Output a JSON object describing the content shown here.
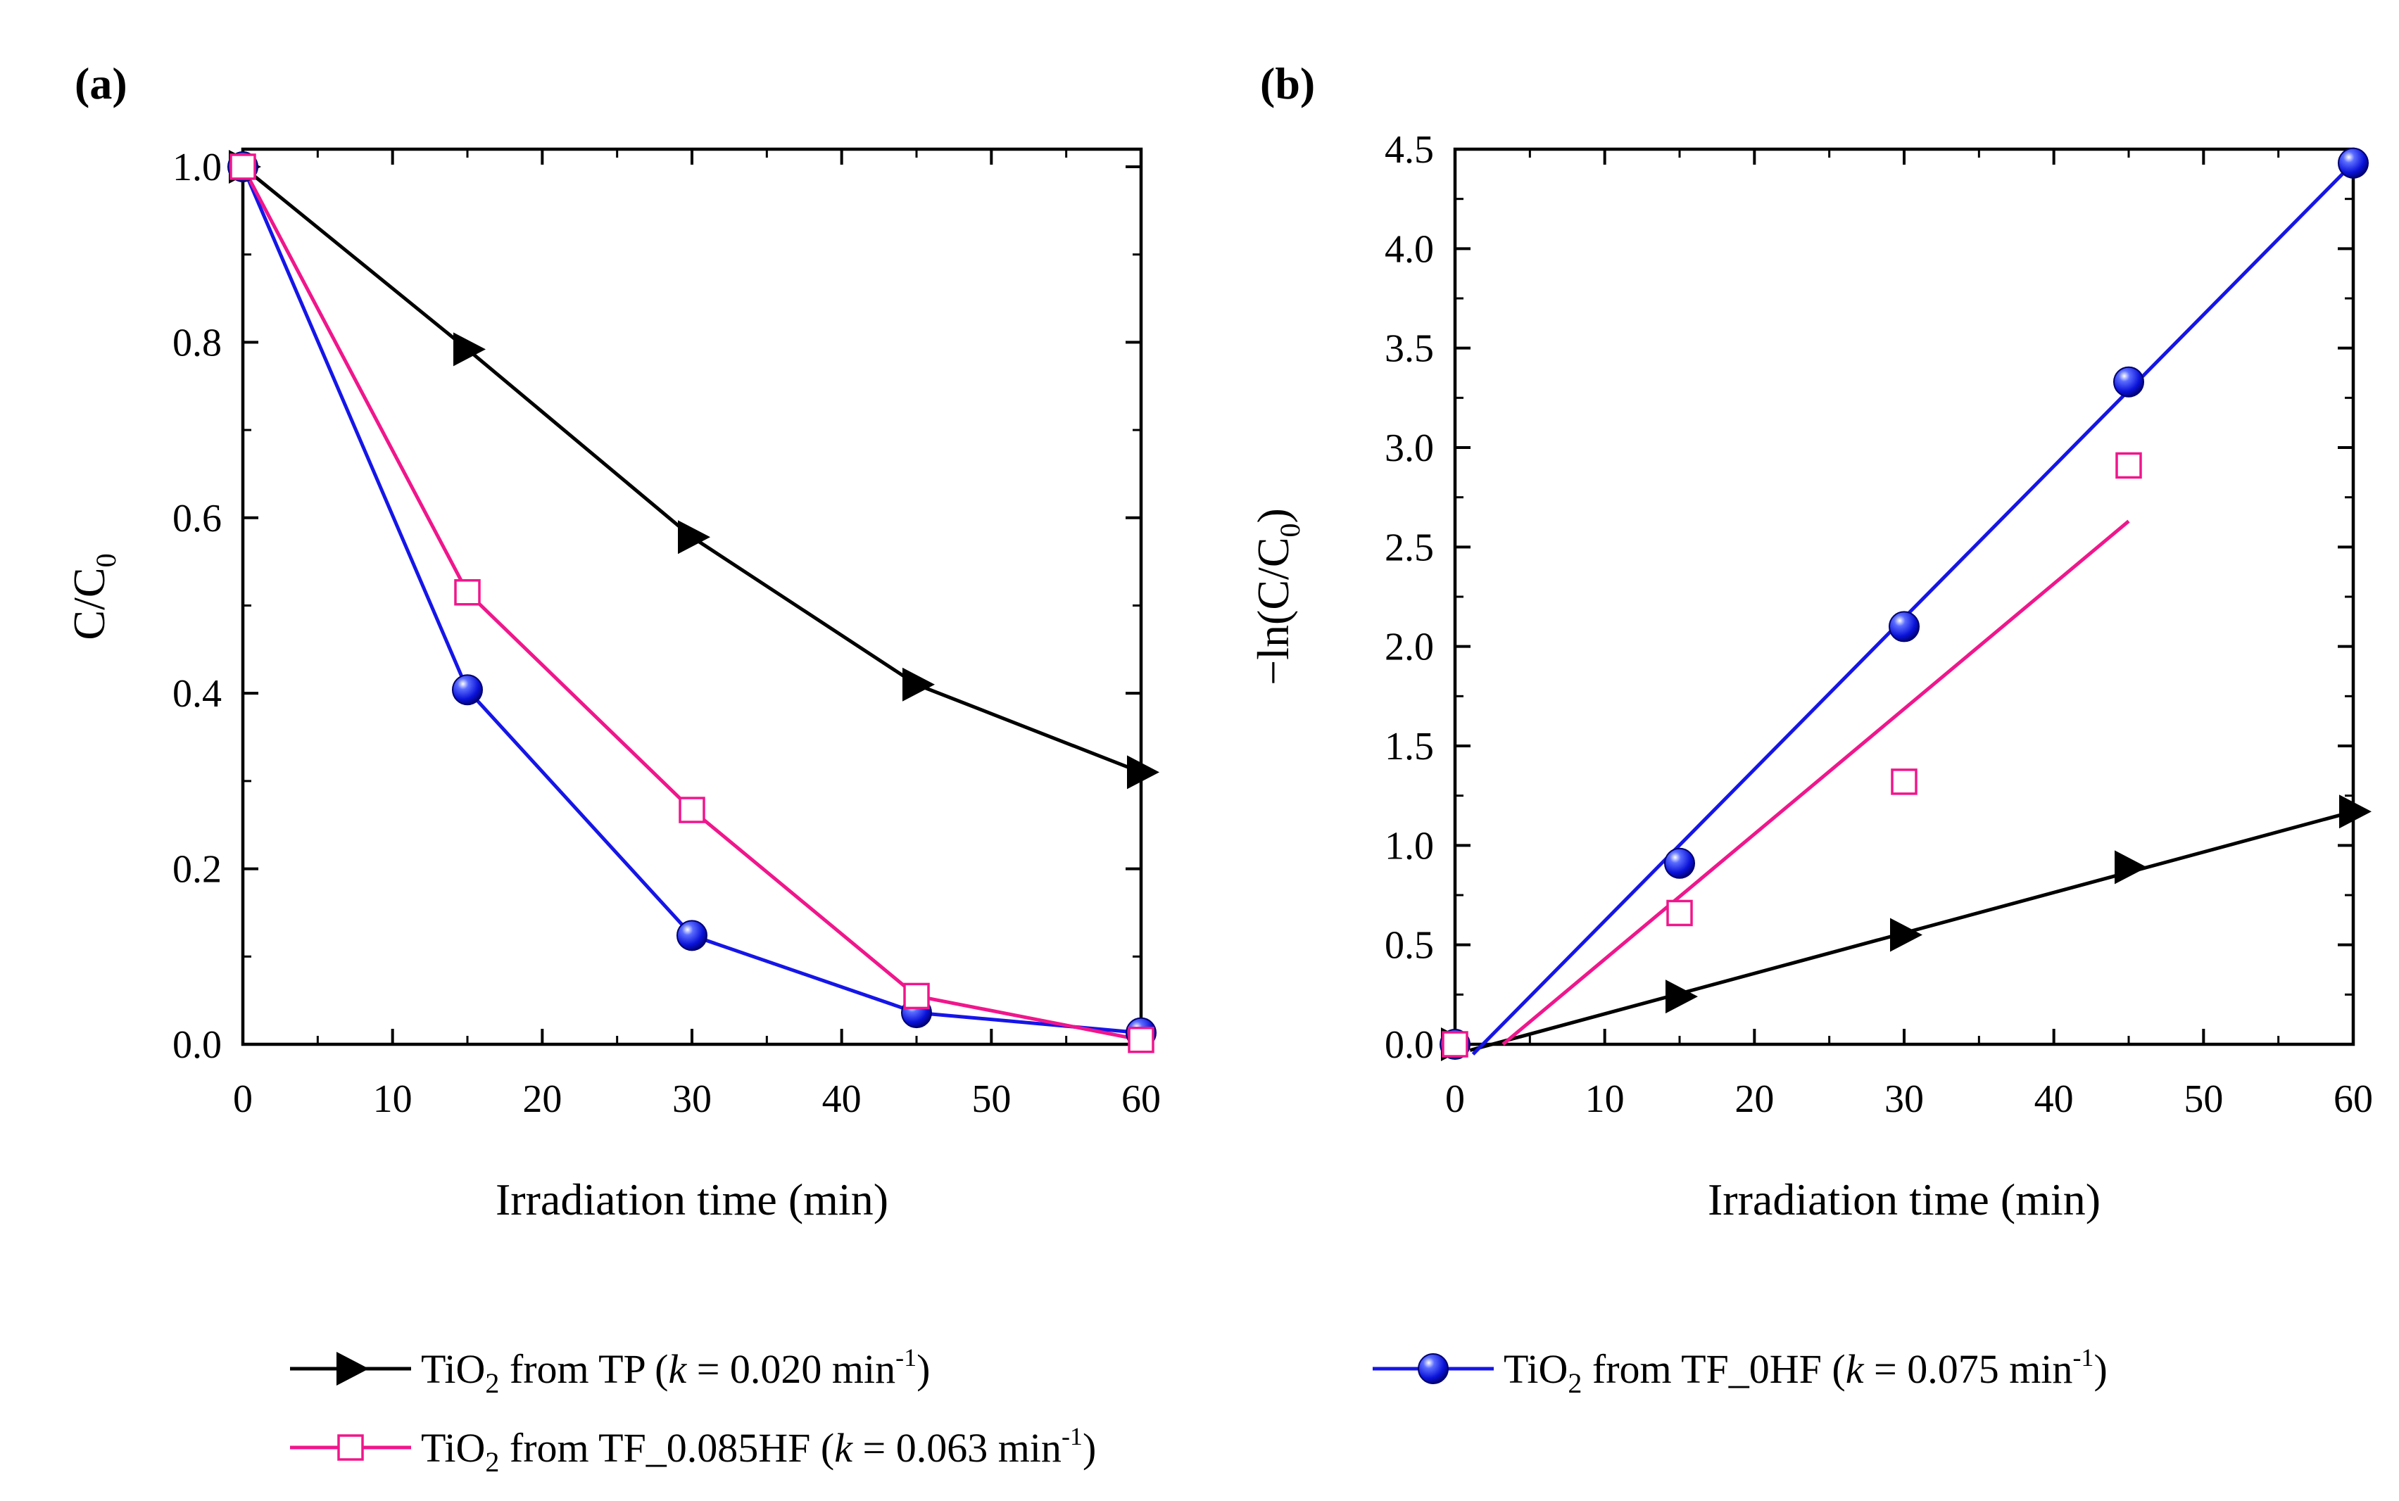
{
  "chart_data": [
    {
      "panel_label": "(a)",
      "type": "line",
      "xlabel": "Irradiation time (min)",
      "ylabel": {
        "main": "C/C",
        "sub": "0"
      },
      "xlim": [
        0,
        60
      ],
      "ylim": [
        0,
        1.02
      ],
      "xticks": [
        0,
        10,
        20,
        30,
        40,
        50,
        60
      ],
      "yticks": [
        "0.0",
        "0.2",
        "0.4",
        "0.6",
        "0.8",
        "1.0"
      ],
      "yticks_values": [
        0,
        0.2,
        0.4,
        0.6,
        0.8,
        1.0
      ],
      "series": [
        {
          "key": "tp",
          "color": "#000000",
          "marker": "triangle-right",
          "x": [
            0,
            15,
            30,
            45,
            60
          ],
          "y": [
            1.0,
            0.792,
            0.578,
            0.41,
            0.31
          ]
        },
        {
          "key": "tf0",
          "color": "#1515e8",
          "marker": "sphere",
          "x": [
            0,
            15,
            30,
            45,
            60
          ],
          "y": [
            1.0,
            0.404,
            0.124,
            0.036,
            0.013
          ]
        },
        {
          "key": "tf085",
          "color": "#f0168c",
          "marker": "open-square",
          "x": [
            0,
            15,
            30,
            45,
            60
          ],
          "y": [
            1.0,
            0.515,
            0.267,
            0.055,
            0.005
          ]
        }
      ]
    },
    {
      "panel_label": "(b)",
      "type": "scatter",
      "xlabel": "Irradiation time (min)",
      "ylabel": {
        "pre": "−ln(C/C",
        "sub": "0",
        "post": ")"
      },
      "xlim": [
        0,
        60
      ],
      "ylim": [
        0,
        4.5
      ],
      "xticks": [
        0,
        10,
        20,
        30,
        40,
        50,
        60
      ],
      "yticks": [
        "0.0",
        "0.5",
        "1.0",
        "1.5",
        "2.0",
        "2.5",
        "3.0",
        "3.5",
        "4.0",
        "4.5"
      ],
      "yticks_values": [
        0,
        0.5,
        1,
        1.5,
        2,
        2.5,
        3,
        3.5,
        4,
        4.5
      ],
      "series": [
        {
          "key": "tp",
          "color": "#000000",
          "marker": "triangle-right",
          "x": [
            0,
            15,
            30,
            45,
            60
          ],
          "y": [
            0,
            0.24,
            0.55,
            0.89,
            1.17
          ],
          "fit": {
            "x": [
              1,
              60
            ],
            "y": [
              -0.03,
              1.17
            ]
          }
        },
        {
          "key": "tf0",
          "color": "#1515e8",
          "marker": "sphere",
          "x": [
            0,
            15,
            30,
            45,
            60
          ],
          "y": [
            0,
            0.91,
            2.1,
            3.33,
            4.43
          ],
          "fit": {
            "x": [
              1.2,
              60
            ],
            "y": [
              -0.05,
              4.43
            ]
          }
        },
        {
          "key": "tf085",
          "color": "#f0168c",
          "marker": "open-square",
          "x": [
            0,
            15,
            30,
            45
          ],
          "y": [
            0,
            0.66,
            1.32,
            2.91
          ],
          "fit": {
            "x": [
              3.2,
              45
            ],
            "y": [
              0,
              2.63
            ]
          }
        }
      ]
    }
  ],
  "legend": [
    {
      "key": "tp",
      "pre": "TiO",
      "sub": "2",
      "mid": " from TP (",
      "k": "k",
      "eq": " = 0.020 min",
      "sup": "-1",
      "post": ")"
    },
    {
      "key": "tf0",
      "pre": "TiO",
      "sub": "2",
      "mid": " from TF_0HF (",
      "k": "k",
      "eq": " = 0.075 min",
      "sup": "-1",
      "post": ")"
    },
    {
      "key": "tf085",
      "pre": "TiO",
      "sub": "2",
      "mid": " from TF_0.085HF (",
      "k": "k",
      "eq": " = 0.063 min",
      "sup": "-1",
      "post": ")"
    }
  ]
}
